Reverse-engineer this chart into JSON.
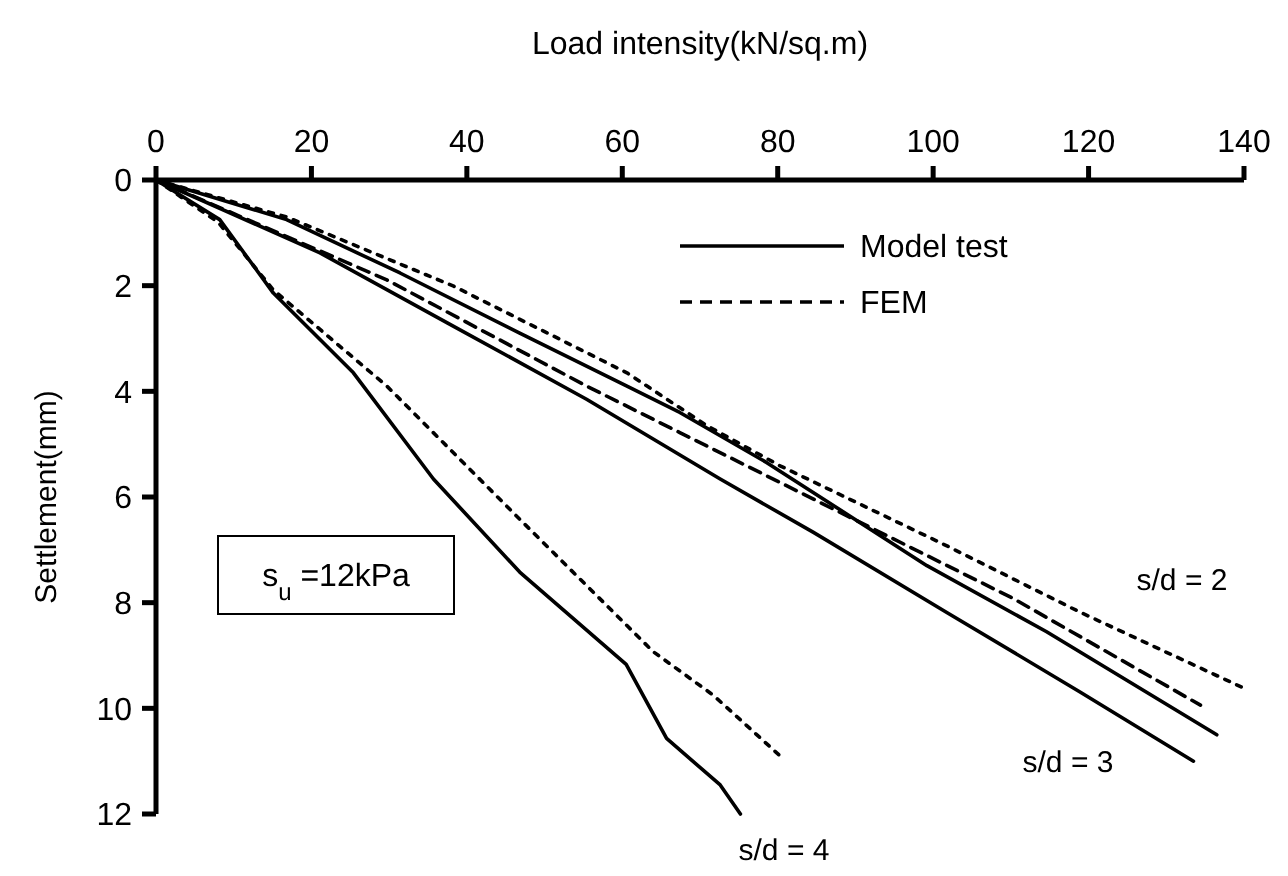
{
  "chart_data": {
    "type": "line",
    "xlabel": "Load intensity(kN/sq.m)",
    "ylabel": "Settlement(mm)",
    "xlim": [
      0,
      140
    ],
    "xticks": [
      0,
      20,
      40,
      60,
      80,
      100,
      120,
      140
    ],
    "ylim": [
      12,
      0
    ],
    "yticks": [
      0,
      2,
      4,
      6,
      8,
      10,
      12
    ],
    "grid": false,
    "legend": "top right",
    "tick_labels": "xy",
    "series": [
      {
        "name": "Model test",
        "color": "#000000",
        "line_style": "solid",
        "x": [
          0,
          8.2,
          15.1,
          25.4,
          35.7,
          46.8,
          60.5,
          65.7,
          72.6,
          75.2
        ],
        "values": [
          0,
          0.75,
          2.14,
          3.65,
          5.66,
          7.42,
          9.17,
          10.57,
          11.45,
          12
        ]
      },
      {
        "name": "FEM",
        "color": "#000000",
        "line_style": "dotted",
        "x": [
          0,
          8,
          15.1,
          29.7,
          46.8,
          64,
          71.7,
          80.3
        ],
        "values": [
          0,
          0.8,
          2.08,
          3.9,
          6.42,
          8.93,
          9.75,
          10.9
        ]
      },
      {
        "color": "#000000",
        "line_style": "solid",
        "x": [
          0,
          16.8,
          31.4,
          46.8,
          60.6,
          67.4,
          78.6,
          99.2,
          114.6,
          136.5
        ],
        "values": [
          0,
          0.75,
          1.76,
          2.9,
          3.9,
          4.4,
          5.35,
          7.3,
          8.55,
          10.5
        ]
      },
      {
        "color": "#000000",
        "line_style": "dotted",
        "x": [
          0,
          16.8,
          38.3,
          60.6,
          70.9,
          80.3,
          101.7,
          118.9,
          140
        ],
        "values": [
          0,
          0.7,
          2.01,
          3.65,
          4.65,
          5.41,
          6.92,
          8.18,
          9.62
        ]
      },
      {
        "color": "#000000",
        "line_style": "solid",
        "x": [
          0,
          21.1,
          38.3,
          55.4,
          72.6,
          84.6,
          101.7,
          118.9,
          133.5
        ],
        "values": [
          0,
          1.38,
          2.77,
          4.15,
          5.66,
          6.67,
          8.18,
          9.69,
          11
        ]
      },
      {
        "color": "#000000",
        "line_style": "dashed",
        "x": [
          0,
          29.7,
          55.4,
          67.4,
          84.6,
          110.3,
          134.4
        ],
        "values": [
          0,
          1.89,
          3.9,
          4.78,
          6.04,
          7.92,
          9.94
        ]
      }
    ],
    "annotations": [
      "s$_{u}$ =12kPa",
      "s/d = 2",
      "s/d = 3",
      "s/d = 4"
    ]
  }
}
